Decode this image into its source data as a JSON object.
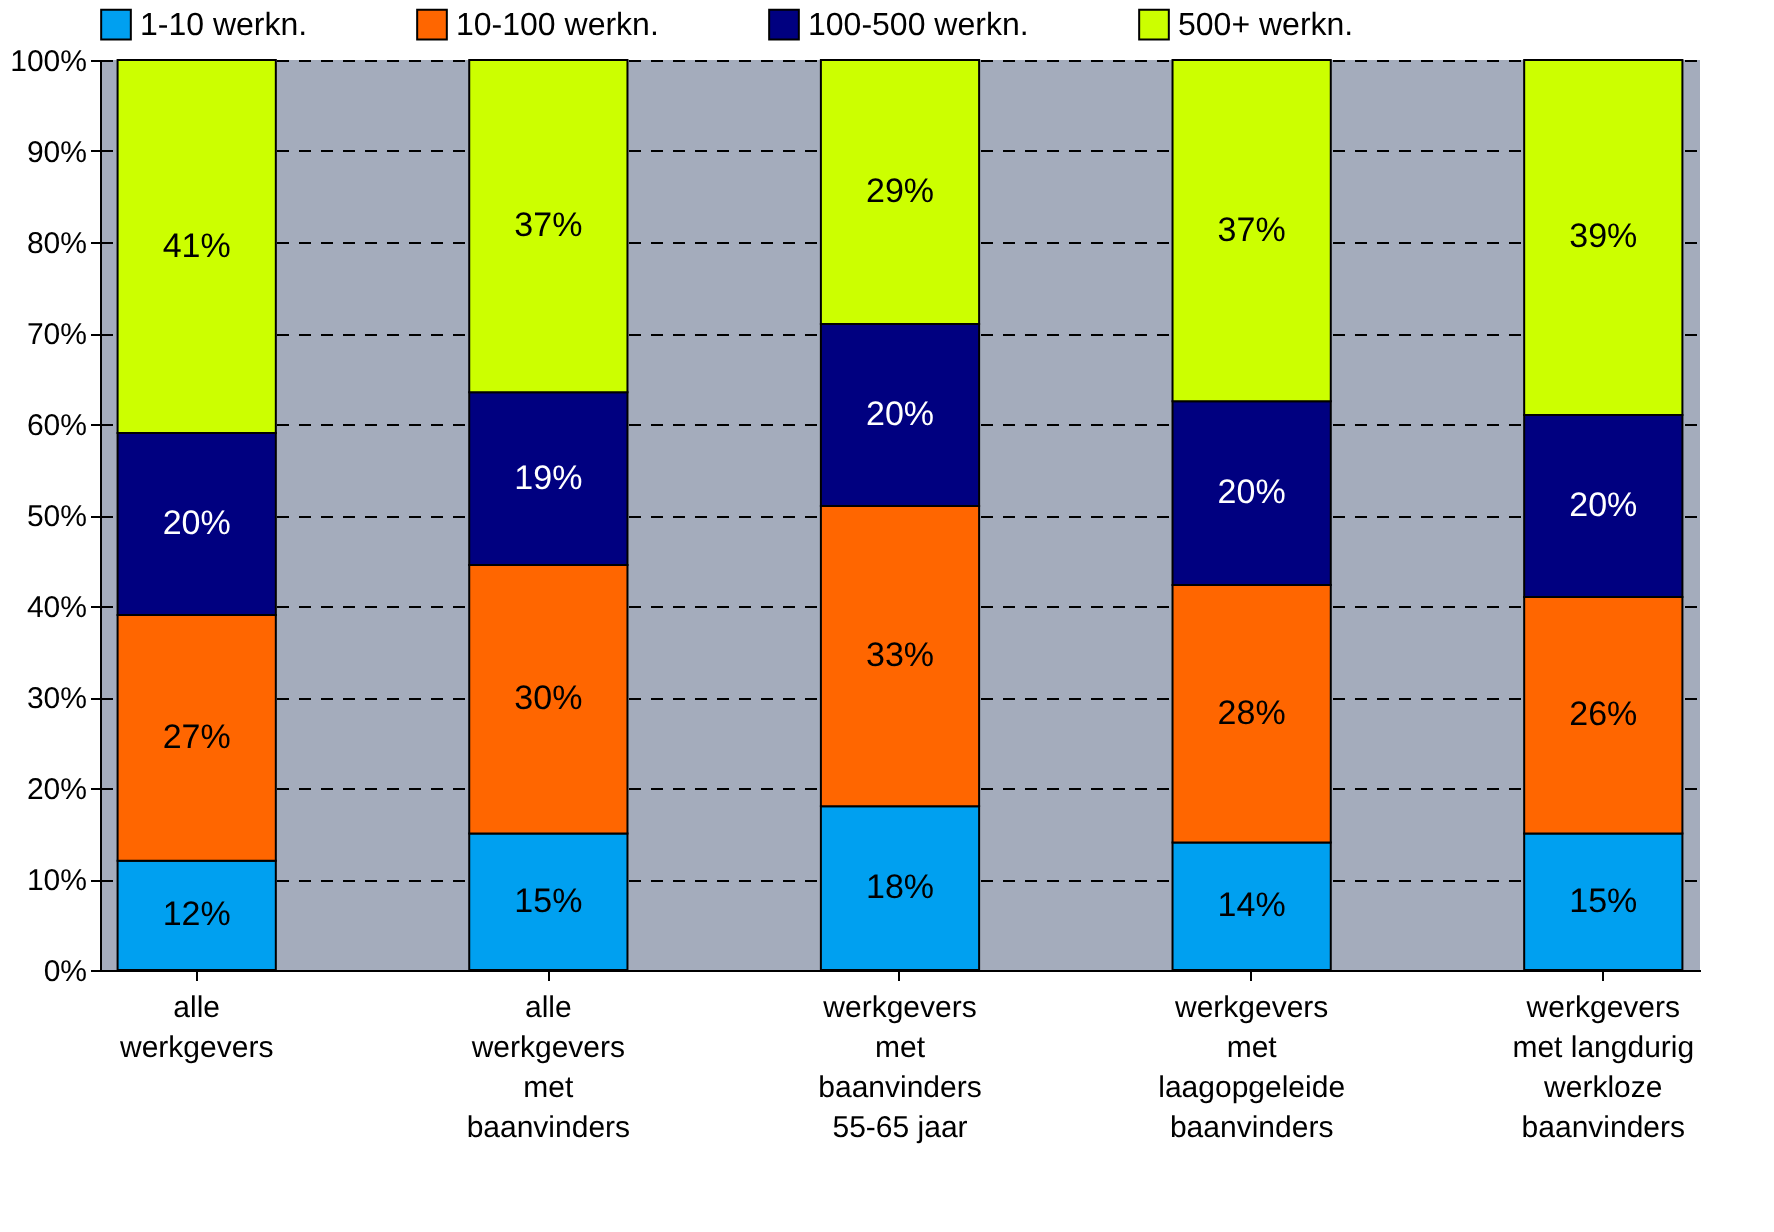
{
  "chart_data": {
    "type": "bar",
    "stacked": true,
    "categories": [
      "alle\nwerkgevers",
      "alle\nwerkgevers\nmet\nbaanvinders",
      "werkgevers\nmet\nbaanvinders\n55-65 jaar",
      "werkgevers\nmet\nlaagopgeleide\nbaanvinders",
      "werkgevers\nmet langdurig\nwerkloze\nbaanvinders"
    ],
    "series": [
      {
        "name": "1-10 werkn.",
        "color": "#00a0f0",
        "values": [
          12,
          15,
          18,
          14,
          15
        ],
        "value_labels": [
          "12%",
          "15%",
          "18%",
          "14%",
          "15%"
        ]
      },
      {
        "name": "10-100 werkn.",
        "color": "#ff6600",
        "values": [
          27,
          29.5,
          33,
          28.3,
          26
        ],
        "value_labels": [
          "27%",
          "30%",
          "33%",
          "28%",
          "26%"
        ]
      },
      {
        "name": "100-500 werkn.",
        "color": "#000080",
        "values": [
          20,
          19,
          20,
          20.2,
          20
        ],
        "value_labels": [
          "20%",
          "19%",
          "20%",
          "20%",
          "20%"
        ]
      },
      {
        "name": "500+ werkn.",
        "color": "#ccff00",
        "values": [
          41,
          36.5,
          29,
          37.5,
          39
        ],
        "value_labels": [
          "41%",
          "37%",
          "29%",
          "37%",
          "39%"
        ]
      }
    ],
    "ylim": [
      0,
      100
    ],
    "yticks": [
      {
        "value": 0,
        "label": "0%"
      },
      {
        "value": 10,
        "label": "10%"
      },
      {
        "value": 20,
        "label": "20%"
      },
      {
        "value": 30,
        "label": "30%"
      },
      {
        "value": 40,
        "label": "40%"
      },
      {
        "value": 50,
        "label": "50%"
      },
      {
        "value": 60,
        "label": "60%"
      },
      {
        "value": 70,
        "label": "70%"
      },
      {
        "value": 80,
        "label": "80%"
      },
      {
        "value": 90,
        "label": "90%"
      },
      {
        "value": 100,
        "label": "100%"
      }
    ],
    "grid": "y",
    "legend": "top"
  }
}
